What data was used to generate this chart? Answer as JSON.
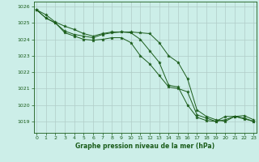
{
  "title": "Graphe pression niveau de la mer (hPa)",
  "background_color": "#cceee8",
  "grid_color": "#b0ccc8",
  "line_color": "#1a5c1a",
  "marker_color": "#1a5c1a",
  "xlim": [
    -0.3,
    23.3
  ],
  "ylim": [
    1018.3,
    1026.3
  ],
  "yticks": [
    1019,
    1020,
    1021,
    1022,
    1023,
    1024,
    1025,
    1026
  ],
  "xticks": [
    0,
    1,
    2,
    3,
    4,
    5,
    6,
    7,
    8,
    9,
    10,
    11,
    12,
    13,
    14,
    15,
    16,
    17,
    18,
    19,
    20,
    21,
    22,
    23
  ],
  "series": [
    [
      1025.8,
      1025.3,
      1025.0,
      1024.5,
      1024.3,
      1024.2,
      1024.1,
      1024.3,
      1024.4,
      1024.45,
      1024.4,
      1024.0,
      1023.3,
      1022.6,
      1021.2,
      1021.1,
      1020.0,
      1019.25,
      1019.05,
      1019.0,
      1019.3,
      1019.3,
      1019.15,
      1019.0
    ],
    [
      1025.8,
      1025.5,
      1025.05,
      1024.8,
      1024.6,
      1024.35,
      1024.2,
      1024.35,
      1024.45,
      1024.45,
      1024.45,
      1024.4,
      1024.35,
      1023.8,
      1023.0,
      1022.6,
      1021.6,
      1019.7,
      1019.3,
      1019.1,
      1019.0,
      1019.3,
      1019.35,
      1019.1
    ],
    [
      1025.8,
      1025.3,
      1025.0,
      1024.4,
      1024.2,
      1024.0,
      1023.95,
      1024.0,
      1024.1,
      1024.1,
      1023.8,
      1023.0,
      1022.5,
      1021.8,
      1021.1,
      1021.0,
      1020.8,
      1019.4,
      1019.2,
      1019.0,
      1019.1,
      1019.3,
      1019.2,
      1019.0
    ]
  ]
}
